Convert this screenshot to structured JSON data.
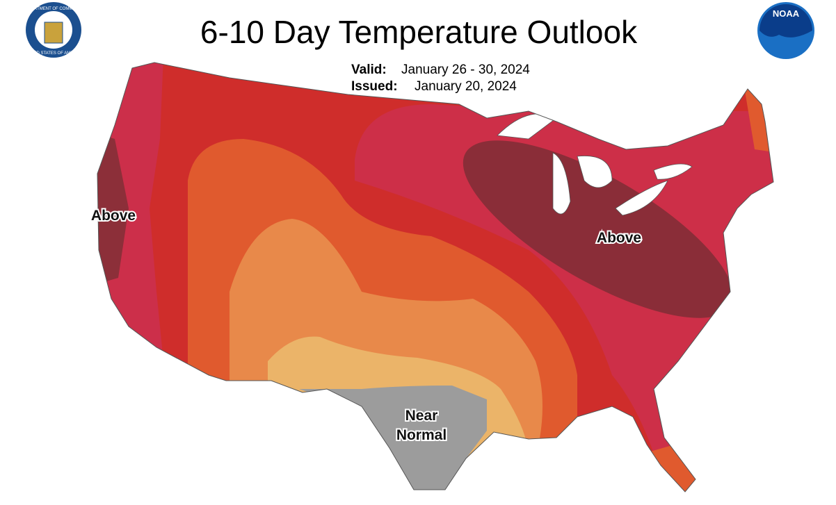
{
  "header": {
    "title": "6-10 Day Temperature Outlook",
    "valid_label": "Valid:",
    "valid_dates": "January 26 - 30, 2024",
    "issued_label": "Issued:",
    "issued_date": "January 20, 2024"
  },
  "logos": {
    "left_top": "DEPARTMENT OF COMMERCE",
    "left_bottom": "UNITED STATES OF AMERICA",
    "right": "NOAA"
  },
  "map": {
    "region_labels": [
      {
        "text": "Above"
      },
      {
        "text": "Above"
      },
      {
        "lines": [
          "Near",
          "Normal"
        ]
      }
    ]
  }
}
